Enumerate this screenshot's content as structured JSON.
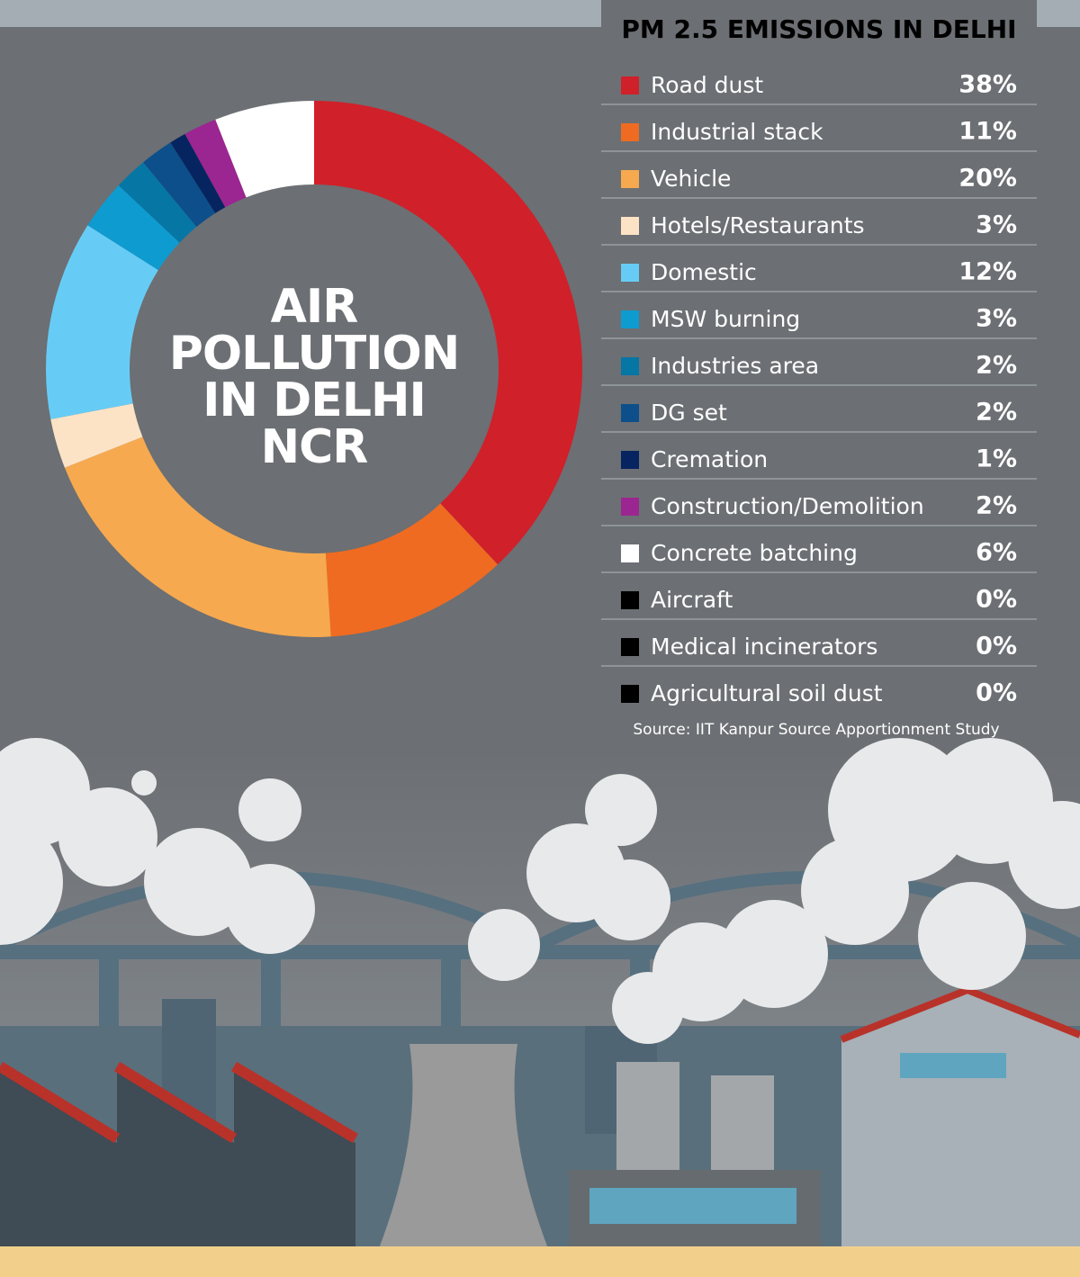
{
  "chart_data": {
    "type": "donut",
    "title": "PM 2.5 EMISSIONS IN DELHI",
    "center_text": "AIR POLLUTION IN DELHI NCR",
    "source": "Source: IIT Kanpur Source Apportionment Study",
    "categories": [
      "Road dust",
      "Industrial stack",
      "Vehicle",
      "Hotels/Restaurants",
      "Domestic",
      "MSW burning",
      "Industries area",
      "DG set",
      "Cremation",
      "Construction/Demolition",
      "Concrete batching",
      "Aircraft",
      "Medical incinerators",
      "Agricultural soil dust"
    ],
    "values": [
      38,
      11,
      20,
      3,
      12,
      3,
      2,
      2,
      1,
      2,
      6,
      0,
      0,
      0
    ],
    "value_labels": [
      "38%",
      "11%",
      "20%",
      "3%",
      "12%",
      "3%",
      "2%",
      "2%",
      "1%",
      "2%",
      "6%",
      "0%",
      "0%",
      "0%"
    ],
    "colors": [
      "#d0202a",
      "#ef6b22",
      "#f6a94f",
      "#fde3c6",
      "#67ccf5",
      "#0e9bd0",
      "#0676a5",
      "#0d4f8a",
      "#062460",
      "#9b2591",
      "#ffffff",
      "#000000",
      "#000000",
      "#000000"
    ]
  }
}
